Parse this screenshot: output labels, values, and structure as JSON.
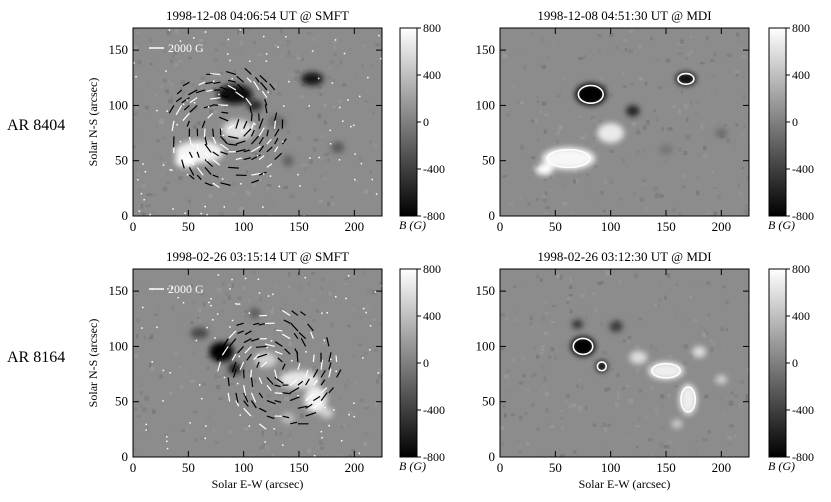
{
  "figure": {
    "rows": [
      {
        "label": "AR 8404",
        "panels": [
          {
            "title": "1998-12-08 04:06:54 UT @ SMFT",
            "type": "vector",
            "scale_label": "2000 G"
          },
          {
            "title": "1998-12-08 04:51:30 UT @ MDI",
            "type": "mdi"
          }
        ]
      },
      {
        "label": "AR 8164",
        "panels": [
          {
            "title": "1998-02-26 03:15:14 UT @ SMFT",
            "type": "vector",
            "scale_label": "2000 G"
          },
          {
            "title": "1998-02-26 03:12:30 UT @ MDI",
            "type": "mdi"
          }
        ]
      }
    ],
    "ylabel": "Solar N-S (arcsec)",
    "xlabel": "Solar E-W (arcsec)",
    "x_ticks": [
      "0",
      "50",
      "100",
      "150",
      "200"
    ],
    "y_ticks": [
      "0",
      "50",
      "100",
      "150"
    ],
    "colorbar": {
      "label": "B (G)",
      "ticks": [
        "800",
        "400",
        "0",
        "-400",
        "-800"
      ],
      "range": [
        -800,
        800
      ]
    },
    "x_range": [
      0,
      225
    ],
    "y_range": [
      0,
      170
    ]
  }
}
